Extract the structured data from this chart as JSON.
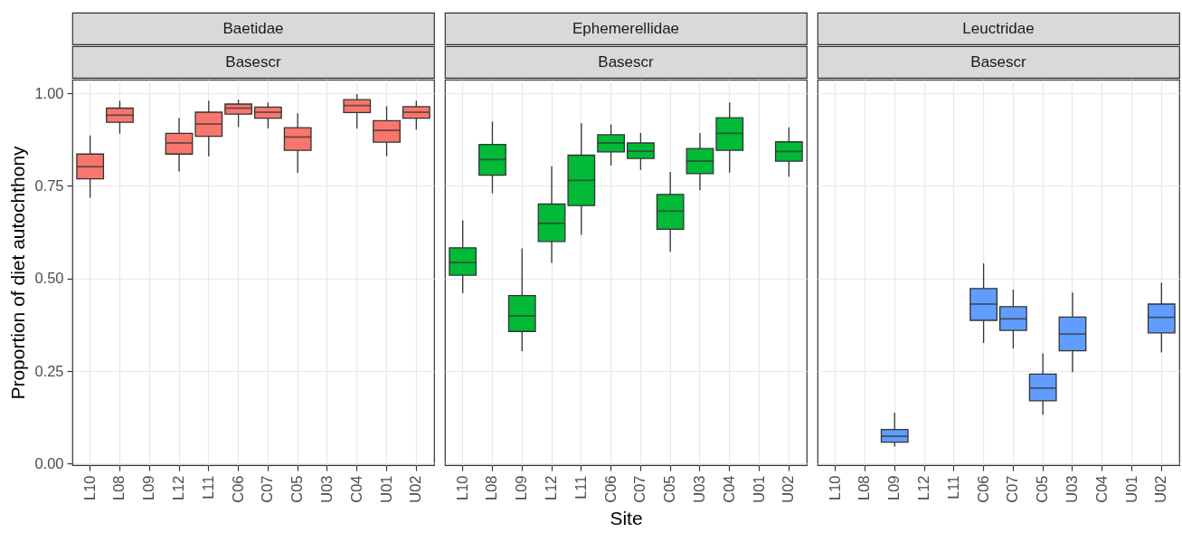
{
  "chart_data": [
    {
      "type": "box",
      "title": "Baetidae",
      "subtitle": "Basescr",
      "ylabel": "Proportion of diet autochthony",
      "categories": [
        "L10",
        "L08",
        "L09",
        "L12",
        "L11",
        "C06",
        "C07",
        "C05",
        "U03",
        "C04",
        "U01",
        "U02"
      ],
      "series": [
        {
          "color": "#f8766d",
          "boxes": [
            {
              "low": 0.718,
              "q1": 0.769,
              "median": 0.802,
              "q3": 0.836,
              "high": 0.886
            },
            {
              "low": 0.891,
              "q1": 0.922,
              "median": 0.941,
              "q3": 0.96,
              "high": 0.98
            },
            null,
            {
              "low": 0.789,
              "q1": 0.836,
              "median": 0.866,
              "q3": 0.892,
              "high": 0.934
            },
            {
              "low": 0.83,
              "q1": 0.884,
              "median": 0.917,
              "q3": 0.949,
              "high": 0.98
            },
            {
              "low": 0.909,
              "q1": 0.944,
              "median": 0.96,
              "q3": 0.971,
              "high": 0.983
            },
            {
              "low": 0.905,
              "q1": 0.933,
              "median": 0.949,
              "q3": 0.963,
              "high": 0.975
            },
            {
              "low": 0.785,
              "q1": 0.846,
              "median": 0.882,
              "q3": 0.907,
              "high": 0.946
            },
            null,
            {
              "low": 0.905,
              "q1": 0.948,
              "median": 0.967,
              "q3": 0.983,
              "high": 0.998
            },
            {
              "low": 0.83,
              "q1": 0.868,
              "median": 0.9,
              "q3": 0.926,
              "high": 0.965
            },
            {
              "low": 0.902,
              "q1": 0.933,
              "median": 0.949,
              "q3": 0.964,
              "high": 0.98
            }
          ]
        }
      ],
      "ylim": [
        -0.004,
        1.037
      ],
      "yticks": [
        {
          "value": 0,
          "label": "0.00"
        },
        0.25,
        {
          "value": 0.5,
          "label": "0.50"
        },
        0.75,
        {
          "value": 1,
          "label": "1.00"
        }
      ],
      "grid": true
    },
    {
      "type": "box",
      "title": "Ephemerellidae",
      "subtitle": "Basescr",
      "xlabel": "Site",
      "categories": [
        "L10",
        "L08",
        "L09",
        "L12",
        "L11",
        "C06",
        "C07",
        "C05",
        "U03",
        "C04",
        "U01",
        "U02"
      ],
      "series": [
        {
          "color": "#00ba38",
          "boxes": [
            {
              "low": 0.46,
              "q1": 0.509,
              "median": 0.543,
              "q3": 0.583,
              "high": 0.657
            },
            {
              "low": 0.73,
              "q1": 0.779,
              "median": 0.821,
              "q3": 0.862,
              "high": 0.924
            },
            {
              "low": 0.304,
              "q1": 0.357,
              "median": 0.399,
              "q3": 0.454,
              "high": 0.581
            },
            {
              "low": 0.542,
              "q1": 0.6,
              "median": 0.649,
              "q3": 0.701,
              "high": 0.803
            },
            {
              "low": 0.618,
              "q1": 0.697,
              "median": 0.765,
              "q3": 0.833,
              "high": 0.92
            },
            {
              "low": 0.805,
              "q1": 0.842,
              "median": 0.866,
              "q3": 0.888,
              "high": 0.916
            },
            {
              "low": 0.793,
              "q1": 0.824,
              "median": 0.844,
              "q3": 0.866,
              "high": 0.893
            },
            {
              "low": 0.572,
              "q1": 0.633,
              "median": 0.682,
              "q3": 0.727,
              "high": 0.788
            },
            {
              "low": 0.738,
              "q1": 0.783,
              "median": 0.817,
              "q3": 0.851,
              "high": 0.893
            },
            {
              "low": 0.786,
              "q1": 0.846,
              "median": 0.892,
              "q3": 0.934,
              "high": 0.975
            },
            null,
            {
              "low": 0.775,
              "q1": 0.817,
              "median": 0.843,
              "q3": 0.869,
              "high": 0.908
            }
          ]
        }
      ],
      "ylim": [
        -0.004,
        1.037
      ],
      "yticks": [
        0,
        0.25,
        0.5,
        0.75,
        1
      ],
      "grid": true,
      "tick_labels": "x"
    },
    {
      "type": "box",
      "title": "Leuctridae",
      "subtitle": "Basescr",
      "categories": [
        "L10",
        "L08",
        "L09",
        "L12",
        "L11",
        "C06",
        "C07",
        "C05",
        "U03",
        "C04",
        "U01",
        "U02"
      ],
      "series": [
        {
          "color": "#619cff",
          "boxes": [
            null,
            null,
            {
              "low": 0.046,
              "q1": 0.058,
              "median": 0.074,
              "q3": 0.092,
              "high": 0.138
            },
            null,
            null,
            {
              "low": 0.326,
              "q1": 0.387,
              "median": 0.431,
              "q3": 0.473,
              "high": 0.541
            },
            {
              "low": 0.311,
              "q1": 0.36,
              "median": 0.391,
              "q3": 0.424,
              "high": 0.47
            },
            {
              "low": 0.132,
              "q1": 0.17,
              "median": 0.204,
              "q3": 0.242,
              "high": 0.298
            },
            {
              "low": 0.247,
              "q1": 0.305,
              "median": 0.35,
              "q3": 0.396,
              "high": 0.462
            },
            null,
            null,
            {
              "low": 0.3,
              "q1": 0.353,
              "median": 0.395,
              "q3": 0.431,
              "high": 0.489
            }
          ]
        }
      ],
      "ylim": [
        -0.004,
        1.037
      ],
      "yticks": [
        0,
        0.25,
        0.5,
        0.75,
        1
      ],
      "grid": true,
      "tick_labels": "x"
    }
  ]
}
